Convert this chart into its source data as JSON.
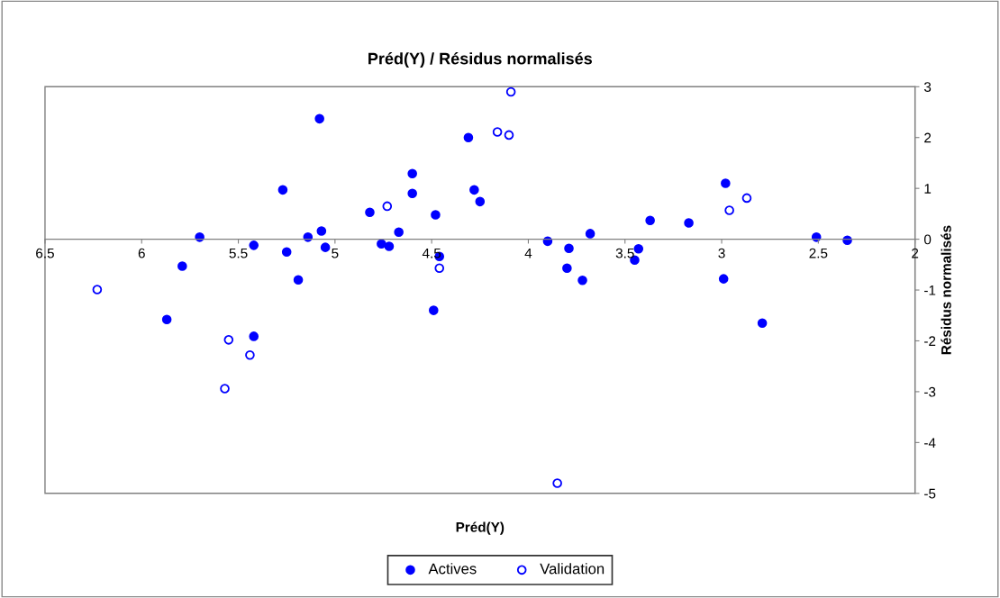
{
  "chart_data": {
    "type": "scatter",
    "title": "Préd(Y) / Résidus normalisés",
    "xlabel": "Préd(Y)",
    "y2label": "Résidus normalisés",
    "xlim": [
      6.5,
      2
    ],
    "xticks": [
      6.5,
      6,
      5.5,
      5,
      4.5,
      4,
      3.5,
      3,
      2.5,
      2
    ],
    "y2lim": [
      -5,
      3
    ],
    "y2ticks": [
      -5,
      -4,
      -3,
      -2,
      -1,
      0,
      1,
      2,
      3
    ],
    "marker": "circle",
    "grid": false,
    "legend": "bottom",
    "series": [
      {
        "name": "Actives",
        "color": "#0000ff",
        "axis": "y2",
        "x": [
          5.7,
          5.79,
          5.87,
          5.42,
          5.42,
          5.27,
          5.25,
          5.19,
          5.14,
          5.08,
          5.07,
          5.05,
          4.82,
          4.76,
          4.72,
          4.67,
          4.6,
          4.6,
          4.48,
          4.49,
          4.46,
          4.31,
          4.28,
          4.25,
          3.9,
          3.8,
          3.79,
          3.72,
          3.68,
          3.45,
          3.43,
          3.37,
          3.17,
          2.98,
          2.99,
          2.79,
          2.51,
          2.35
        ],
        "values": [
          0.04,
          -0.53,
          -1.58,
          -0.12,
          -1.91,
          0.97,
          -0.25,
          -0.8,
          0.04,
          2.37,
          0.16,
          -0.16,
          0.53,
          -0.09,
          -0.14,
          0.14,
          1.29,
          0.9,
          0.48,
          -1.4,
          -0.34,
          2.0,
          0.97,
          0.74,
          -0.04,
          -0.57,
          -0.18,
          -0.81,
          0.11,
          -0.41,
          -0.19,
          0.37,
          0.32,
          1.1,
          -0.78,
          -1.65,
          0.04,
          -0.02
        ]
      },
      {
        "name": "Validation",
        "color": "#0000ff",
        "axis": "y2",
        "x": [
          6.23,
          5.55,
          5.57,
          5.44,
          4.73,
          4.46,
          4.09,
          4.16,
          4.1,
          3.85,
          2.96,
          2.87
        ],
        "values": [
          -0.99,
          -1.98,
          -2.94,
          -2.28,
          0.65,
          -0.57,
          2.9,
          2.11,
          2.05,
          -4.8,
          0.57,
          0.81
        ]
      }
    ]
  }
}
